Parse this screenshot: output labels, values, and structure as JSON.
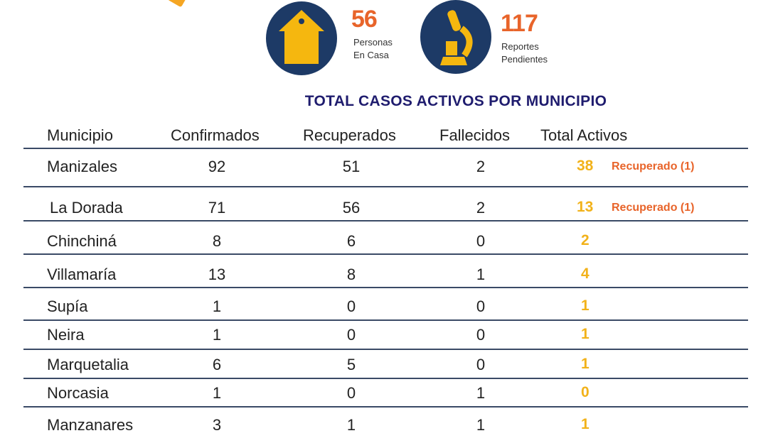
{
  "stats": [
    {
      "icon": "house-icon",
      "value": "56",
      "label_line1": "Personas",
      "label_line2": "En Casa"
    },
    {
      "icon": "microscope-icon",
      "value": "117",
      "label_line1": "Reportes",
      "label_line2": "Pendientes"
    }
  ],
  "title": "TOTAL CASOS ACTIVOS POR MUNICIPIO",
  "colors": {
    "navy": "#1d3a66",
    "orange": "#e8642a",
    "yellow": "#f2b21a"
  },
  "table": {
    "headers": [
      "Municipio",
      "Confirmados",
      "Recuperados",
      "Fallecidos",
      "Total Activos"
    ],
    "rows": [
      {
        "municipio": "Manizales",
        "confirmados": "92",
        "recuperados": "51",
        "fallecidos": "2",
        "total": "38",
        "note": "Recuperado (1)"
      },
      {
        "municipio": "La Dorada",
        "confirmados": "71",
        "recuperados": "56",
        "fallecidos": "2",
        "total": "13",
        "note": "Recuperado (1)"
      },
      {
        "municipio": "Chinchiná",
        "confirmados": "8",
        "recuperados": "6",
        "fallecidos": "0",
        "total": "2"
      },
      {
        "municipio": "Villamaría",
        "confirmados": "13",
        "recuperados": "8",
        "fallecidos": "1",
        "total": "4"
      },
      {
        "municipio": "Supía",
        "confirmados": "1",
        "recuperados": "0",
        "fallecidos": "0",
        "total": "1"
      },
      {
        "municipio": "Neira",
        "confirmados": "1",
        "recuperados": "0",
        "fallecidos": "0",
        "total": "1"
      },
      {
        "municipio": "Marquetalia",
        "confirmados": "6",
        "recuperados": "5",
        "fallecidos": "0",
        "total": "1"
      },
      {
        "municipio": "Norcasia",
        "confirmados": "1",
        "recuperados": "0",
        "fallecidos": "1",
        "total": "0"
      },
      {
        "municipio": "Manzanares",
        "confirmados": "3",
        "recuperados": "1",
        "fallecidos": "1",
        "total": "1"
      }
    ]
  }
}
